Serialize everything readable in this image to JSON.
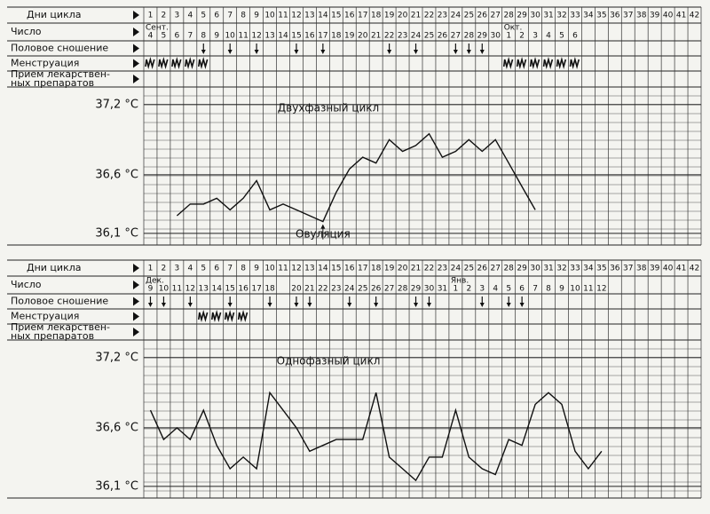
{
  "chart_data": [
    {
      "type": "line",
      "title": "Двухфазный цикл",
      "color": "#111",
      "row_labels": [
        "Дни цикла",
        "Число",
        "Половое сношение",
        "Менструация",
        [
          "Прием лекарствен-",
          "ных препаратов"
        ]
      ],
      "categories": [
        "1",
        "2",
        "3",
        "4",
        "5",
        "6",
        "7",
        "8",
        "9",
        "10",
        "11",
        "12",
        "13",
        "14",
        "15",
        "16",
        "17",
        "18",
        "19",
        "20",
        "21",
        "22",
        "23",
        "24",
        "25",
        "26",
        "27",
        "28",
        "29",
        "30",
        "31",
        "32",
        "33",
        "34",
        "35",
        "36",
        "37",
        "38",
        "39",
        "40",
        "41",
        "42"
      ],
      "dates": [
        "4",
        "5",
        "6",
        "7",
        "8",
        "9",
        "10",
        "11",
        "12",
        "13",
        "14",
        "15",
        "16",
        "17",
        "18",
        "19",
        "20",
        "21",
        "22",
        "23",
        "24",
        "25",
        "26",
        "27",
        "28",
        "29",
        "30",
        "1",
        "2",
        "3",
        "4",
        "5",
        "6",
        null,
        null,
        null,
        null,
        null,
        null,
        null,
        null,
        null
      ],
      "month_labels": [
        {
          "day": 1,
          "label": "Сент."
        },
        {
          "day": 28,
          "label": "Окт."
        }
      ],
      "intercourse_days": [
        5,
        7,
        9,
        12,
        14,
        19,
        21,
        24,
        25,
        26
      ],
      "menstruation_days": [
        1,
        2,
        3,
        4,
        5,
        28,
        29,
        30,
        31,
        32,
        33
      ],
      "values": [
        null,
        null,
        36.25,
        36.35,
        36.35,
        36.4,
        36.3,
        36.4,
        36.55,
        36.3,
        36.35,
        36.3,
        36.25,
        36.2,
        36.45,
        36.65,
        36.75,
        36.7,
        36.9,
        36.8,
        36.85,
        36.95,
        36.75,
        36.8,
        36.9,
        36.8,
        36.9,
        36.7,
        36.5,
        36.3,
        null,
        null,
        null,
        null,
        null,
        null,
        null,
        null,
        null,
        null,
        null,
        null
      ],
      "annotation": {
        "text": "Овуляция",
        "day": 14
      },
      "ylim": [
        36.0,
        37.35
      ],
      "yticks": [
        {
          "value": 37.2,
          "label": "37,2 °C"
        },
        {
          "value": 36.6,
          "label": "36,6 °C"
        },
        {
          "value": 36.1,
          "label": "36,1 °C"
        }
      ]
    },
    {
      "type": "line",
      "title": "Однофазный цикл",
      "color": "#111",
      "row_labels": [
        "Дни цикла",
        "Число",
        "Половое сношение",
        "Менструация",
        [
          "Прием лекарствен-",
          "ных препаратов"
        ]
      ],
      "categories": [
        "1",
        "2",
        "3",
        "4",
        "5",
        "6",
        "7",
        "8",
        "9",
        "10",
        "11",
        "12",
        "13",
        "14",
        "15",
        "16",
        "17",
        "18",
        "19",
        "20",
        "21",
        "22",
        "23",
        "24",
        "25",
        "26",
        "27",
        "28",
        "29",
        "30",
        "31",
        "32",
        "33",
        "34",
        "35",
        "36",
        "37",
        "38",
        "39",
        "40",
        "41",
        "42"
      ],
      "dates": [
        "9",
        "10",
        "11",
        "12",
        "13",
        "14",
        "15",
        "16",
        "17",
        "18",
        null,
        "20",
        "21",
        "22",
        "23",
        "24",
        "25",
        "26",
        "27",
        "28",
        "29",
        "30",
        "31",
        "1",
        "2",
        "3",
        "4",
        "5",
        "6",
        "7",
        "8",
        "9",
        "10",
        "11",
        "12",
        null,
        null,
        null,
        null,
        null,
        null,
        null
      ],
      "month_labels": [
        {
          "day": 1,
          "label": "Дек."
        },
        {
          "day": 24,
          "label": "Янв."
        }
      ],
      "intercourse_days": [
        1,
        2,
        4,
        7,
        10,
        12,
        13,
        16,
        18,
        21,
        22,
        26,
        28,
        29
      ],
      "menstruation_days": [
        5,
        6,
        7,
        8
      ],
      "values": [
        36.75,
        36.5,
        36.6,
        36.5,
        36.75,
        36.45,
        36.25,
        36.35,
        36.25,
        36.9,
        36.75,
        36.6,
        36.4,
        36.45,
        36.5,
        36.5,
        36.5,
        36.9,
        36.35,
        36.25,
        36.15,
        36.35,
        36.35,
        36.75,
        36.35,
        36.25,
        36.2,
        36.5,
        36.45,
        36.8,
        36.9,
        36.8,
        36.4,
        36.25,
        36.4,
        null,
        null,
        null,
        null,
        null,
        null,
        null
      ],
      "ylim": [
        36.0,
        37.35
      ],
      "yticks": [
        {
          "value": 37.2,
          "label": "37,2 °C"
        },
        {
          "value": 36.6,
          "label": "36,6 °C"
        },
        {
          "value": 36.1,
          "label": "36,1 °C"
        }
      ]
    }
  ]
}
